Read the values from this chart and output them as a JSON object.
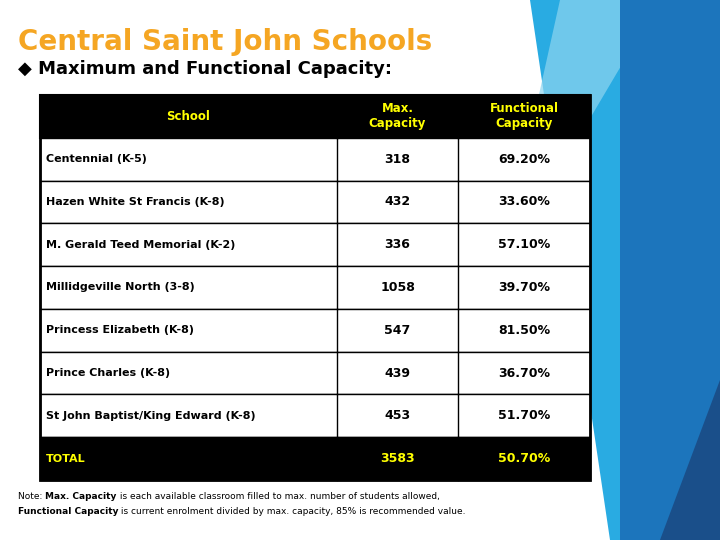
{
  "title_line1": "Central Saint John Schools",
  "title_line2": "◆ Maximum and Functional Capacity:",
  "title_color1": "#F5A623",
  "title_color2": "#000000",
  "bg_color": "#FFFFFF",
  "header_bg": "#000000",
  "header_text_color": "#FFFF00",
  "col_headers": [
    "School",
    "Max.\nCapacity",
    "Functional\nCapacity"
  ],
  "rows": [
    [
      "Centennial (K-5)",
      "318",
      "69.20%"
    ],
    [
      "Hazen White St Francis (K-8)",
      "432",
      "33.60%"
    ],
    [
      "M. Gerald Teed Memorial (K-2)",
      "336",
      "57.10%"
    ],
    [
      "Millidgeville North (3-8)",
      "1058",
      "39.70%"
    ],
    [
      "Princess Elizabeth (K-8)",
      "547",
      "81.50%"
    ],
    [
      "Prince Charles (K-8)",
      "439",
      "36.70%"
    ],
    [
      "St John Baptist/King Edward (K-8)",
      "453",
      "51.70%"
    ],
    [
      "TOTAL",
      "3583",
      "50.70%"
    ]
  ],
  "table_border_color": "#000000",
  "deco_light_blue": "#29ABE2",
  "deco_mid_blue": "#1C75BC",
  "deco_dark_blue": "#1A4F8A",
  "note_line1_parts": [
    [
      "Note: ",
      false
    ],
    [
      "Max. Capacity",
      true
    ],
    [
      " is each available classroom filled to max. number of students allowed,",
      false
    ]
  ],
  "note_line2_parts": [
    [
      "Functional Capacity",
      true
    ],
    [
      " is current enrolment divided by max. capacity, 85% is recommended value.",
      false
    ]
  ]
}
